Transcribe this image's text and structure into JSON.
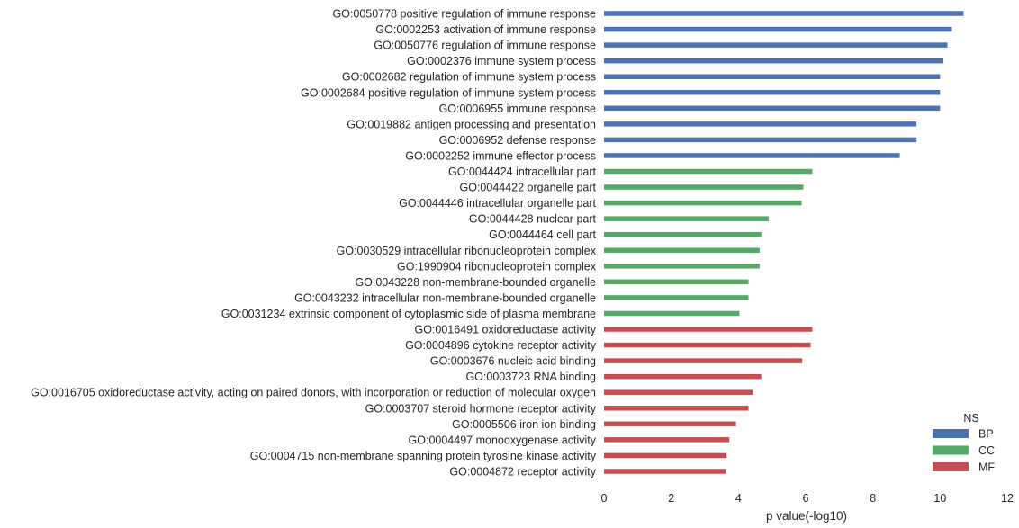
{
  "chart_data": {
    "type": "bar",
    "orientation": "horizontal",
    "xlabel": "p value(-log10)",
    "ylabel": "",
    "xlim": [
      0,
      12
    ],
    "xticks": [
      0,
      2,
      4,
      6,
      8,
      10,
      12
    ],
    "grid": false,
    "legend": {
      "title": "NS",
      "placement": "bottom-right",
      "entries": [
        {
          "name": "BP",
          "color": "#4c72b0"
        },
        {
          "name": "CC",
          "color": "#55a868"
        },
        {
          "name": "MF",
          "color": "#c44e52"
        }
      ]
    },
    "bars": [
      {
        "label": "GO:0050778 positive regulation of immune response",
        "value": 10.7,
        "ns": "BP"
      },
      {
        "label": "GO:0002253 activation of immune response",
        "value": 10.35,
        "ns": "BP"
      },
      {
        "label": "GO:0050776 regulation of immune response",
        "value": 10.22,
        "ns": "BP"
      },
      {
        "label": "GO:0002376 immune system process",
        "value": 10.1,
        "ns": "BP"
      },
      {
        "label": "GO:0002682 regulation of immune system process",
        "value": 10.0,
        "ns": "BP"
      },
      {
        "label": "GO:0002684 positive regulation of immune system process",
        "value": 10.0,
        "ns": "BP"
      },
      {
        "label": "GO:0006955 immune response",
        "value": 10.0,
        "ns": "BP"
      },
      {
        "label": "GO:0019882 antigen processing and presentation",
        "value": 9.3,
        "ns": "BP"
      },
      {
        "label": "GO:0006952 defense response",
        "value": 9.3,
        "ns": "BP"
      },
      {
        "label": "GO:0002252 immune effector process",
        "value": 8.8,
        "ns": "BP"
      },
      {
        "label": "GO:0044424 intracellular part",
        "value": 6.2,
        "ns": "CC"
      },
      {
        "label": "GO:0044422 organelle part",
        "value": 5.93,
        "ns": "CC"
      },
      {
        "label": "GO:0044446 intracellular organelle part",
        "value": 5.88,
        "ns": "CC"
      },
      {
        "label": "GO:0044428 nuclear part",
        "value": 4.9,
        "ns": "CC"
      },
      {
        "label": "GO:0044464 cell part",
        "value": 4.68,
        "ns": "CC"
      },
      {
        "label": "GO:0030529 intracellular ribonucleoprotein complex",
        "value": 4.63,
        "ns": "CC"
      },
      {
        "label": "GO:1990904 ribonucleoprotein complex",
        "value": 4.63,
        "ns": "CC"
      },
      {
        "label": "GO:0043228 non-membrane-bounded organelle",
        "value": 4.3,
        "ns": "CC"
      },
      {
        "label": "GO:0043232 intracellular non-membrane-bounded organelle",
        "value": 4.3,
        "ns": "CC"
      },
      {
        "label": "GO:0031234 extrinsic component of cytoplasmic side of plasma membrane",
        "value": 4.03,
        "ns": "CC"
      },
      {
        "label": "GO:0016491 oxidoreductase activity",
        "value": 6.2,
        "ns": "MF"
      },
      {
        "label": "GO:0004896 cytokine receptor activity",
        "value": 6.15,
        "ns": "MF"
      },
      {
        "label": "GO:0003676 nucleic acid binding",
        "value": 5.9,
        "ns": "MF"
      },
      {
        "label": "GO:0003723 RNA binding",
        "value": 4.68,
        "ns": "MF"
      },
      {
        "label": "GO:0016705 oxidoreductase activity, acting on paired donors, with incorporation or reduction of molecular oxygen",
        "value": 4.43,
        "ns": "MF"
      },
      {
        "label": "GO:0003707 steroid hormone receptor activity",
        "value": 4.3,
        "ns": "MF"
      },
      {
        "label": "GO:0005506 iron ion binding",
        "value": 3.93,
        "ns": "MF"
      },
      {
        "label": "GO:0004497 monooxygenase activity",
        "value": 3.73,
        "ns": "MF"
      },
      {
        "label": "GO:0004715 non-membrane spanning protein tyrosine kinase activity",
        "value": 3.65,
        "ns": "MF"
      },
      {
        "label": "GO:0004872 receptor activity",
        "value": 3.63,
        "ns": "MF"
      }
    ]
  }
}
